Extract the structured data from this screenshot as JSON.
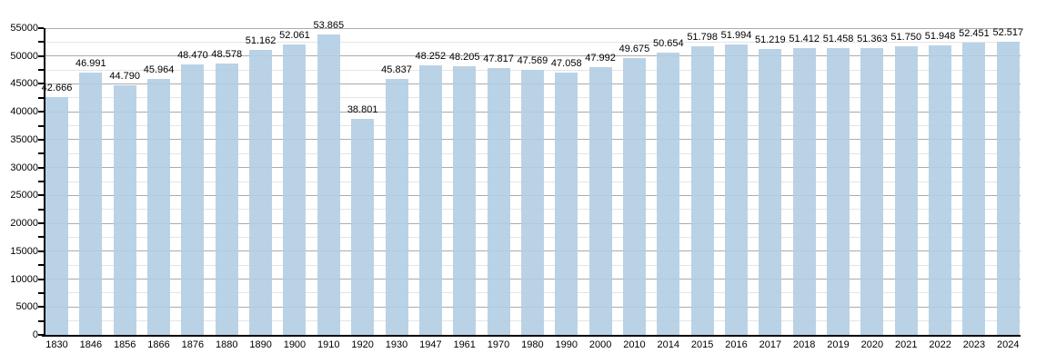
{
  "chart": {
    "background": "#ffffff",
    "title": ""
  },
  "chart_data": {
    "type": "bar",
    "title": "",
    "xlabel": "",
    "ylabel": "",
    "categories": [
      "1830",
      "1846",
      "1856",
      "1866",
      "1876",
      "1880",
      "1890",
      "1900",
      "1910",
      "1920",
      "1930",
      "1947",
      "1961",
      "1970",
      "1980",
      "1990",
      "2000",
      "2010",
      "2014",
      "2015",
      "2016",
      "2017",
      "2018",
      "2019",
      "2020",
      "2021",
      "2022",
      "2023",
      "2024"
    ],
    "values": [
      42666,
      46991,
      44790,
      45964,
      48470,
      48578,
      51162,
      52061,
      53865,
      38801,
      45837,
      48252,
      48205,
      47817,
      47569,
      47058,
      47992,
      49675,
      50654,
      51798,
      51994,
      51219,
      51412,
      51458,
      51363,
      51750,
      51948,
      52451,
      52517
    ],
    "bar_labels": [
      "42.666",
      "46.991",
      "44.790",
      "45.964",
      "48.470",
      "48.578",
      "51.162",
      "52.061",
      "53.865",
      "38.801",
      "45.837",
      "48.252",
      "48.205",
      "47.817",
      "47.569",
      "47.058",
      "47.992",
      "49.675",
      "50.654",
      "51.798",
      "51.994",
      "51.219",
      "51.412",
      "51.458",
      "51.363",
      "51.750",
      "51.948",
      "52.451",
      "52.517"
    ],
    "ylim": [
      0,
      55000
    ],
    "ytick_step": 5000,
    "yminor_step": 2500,
    "ytick_labels": [
      "0",
      "5000",
      "10000",
      "15000",
      "20000",
      "25000",
      "30000",
      "35000",
      "40000",
      "45000",
      "50000",
      "55000"
    ],
    "grid": true,
    "legend": null,
    "colors": {
      "bar_fill": "#b3cde3",
      "bar_opacity": 0.9,
      "major_grid": "#ababab",
      "minor_grid": "#e5e5e5",
      "axis": "#000000",
      "label_text": "#000000"
    }
  }
}
